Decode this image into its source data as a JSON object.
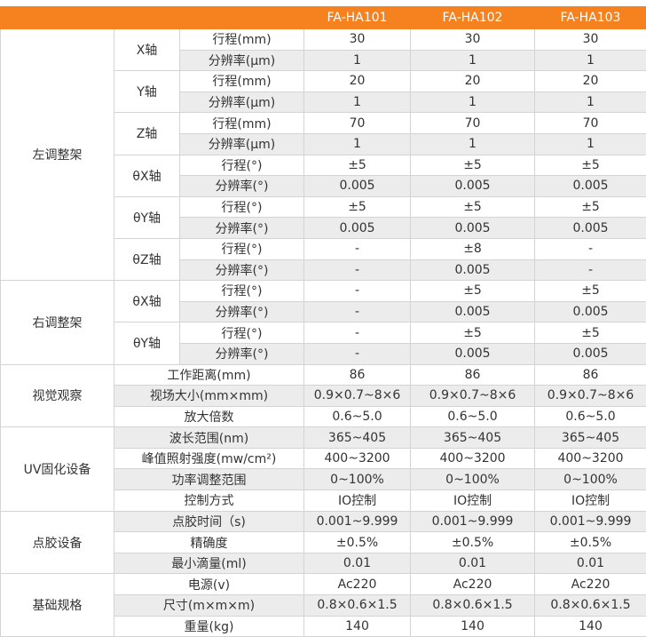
{
  "table": {
    "columns": [
      "FA-HA101",
      "FA-HA102",
      "FA-HA103"
    ],
    "groups": [
      {
        "label": "左调整架",
        "axes": [
          {
            "label": "X轴",
            "rows": [
              {
                "label": "行程(mm)",
                "values": [
                  "30",
                  "30",
                  "30"
                ]
              },
              {
                "label": "分辨率(μm)",
                "values": [
                  "1",
                  "1",
                  "1"
                ]
              }
            ]
          },
          {
            "label": "Y轴",
            "rows": [
              {
                "label": "行程(mm)",
                "values": [
                  "20",
                  "20",
                  "20"
                ]
              },
              {
                "label": "分辨率(μm)",
                "values": [
                  "1",
                  "1",
                  "1"
                ]
              }
            ]
          },
          {
            "label": "Z轴",
            "rows": [
              {
                "label": "行程(mm)",
                "values": [
                  "70",
                  "70",
                  "70"
                ]
              },
              {
                "label": "分辨率(μm)",
                "values": [
                  "1",
                  "1",
                  "1"
                ]
              }
            ]
          },
          {
            "label": "θX轴",
            "rows": [
              {
                "label": "行程(°)",
                "values": [
                  "±5",
                  "±5",
                  "±5"
                ]
              },
              {
                "label": "分辨率(°)",
                "values": [
                  "0.005",
                  "0.005",
                  "0.005"
                ]
              }
            ]
          },
          {
            "label": "θY轴",
            "rows": [
              {
                "label": "行程(°)",
                "values": [
                  "±5",
                  "±5",
                  "±5"
                ]
              },
              {
                "label": "分辨率(°)",
                "values": [
                  "0.005",
                  "0.005",
                  "0.005"
                ]
              }
            ]
          },
          {
            "label": "θZ轴",
            "rows": [
              {
                "label": "行程(°)",
                "values": [
                  "-",
                  "±8",
                  "-"
                ]
              },
              {
                "label": "分辨率(°)",
                "values": [
                  "-",
                  "0.005",
                  "-"
                ]
              }
            ]
          }
        ]
      },
      {
        "label": "右调整架",
        "axes": [
          {
            "label": "θX轴",
            "rows": [
              {
                "label": "行程(°)",
                "values": [
                  "-",
                  "±5",
                  "±5"
                ]
              },
              {
                "label": "分辨率(°)",
                "values": [
                  "-",
                  "0.005",
                  "0.005"
                ]
              }
            ]
          },
          {
            "label": "θY轴",
            "rows": [
              {
                "label": "行程(°)",
                "values": [
                  "-",
                  "±5",
                  "±5"
                ]
              },
              {
                "label": "分辨率(°)",
                "values": [
                  "-",
                  "0.005",
                  "0.005"
                ]
              }
            ]
          }
        ]
      },
      {
        "label": "视觉观察",
        "rows": [
          {
            "label": "工作距离(mm)",
            "values": [
              "86",
              "86",
              "86"
            ]
          },
          {
            "label": "视场大小(mm×mm)",
            "values": [
              "0.9×0.7~8×6",
              "0.9×0.7~8×6",
              "0.9×0.7~8×6"
            ]
          },
          {
            "label": "放大倍数",
            "values": [
              "0.6~5.0",
              "0.6~5.0",
              "0.6~5.0"
            ]
          }
        ]
      },
      {
        "label": "UV固化设备",
        "rows": [
          {
            "label": "波长范围(nm)",
            "values": [
              "365~405",
              "365~405",
              "365~405"
            ]
          },
          {
            "label": "峰值照射强度(mw/cm²)",
            "values": [
              "400~3200",
              "400~3200",
              "400~3200"
            ]
          },
          {
            "label": "功率调整范围",
            "values": [
              "0~100%",
              "0~100%",
              "0~100%"
            ]
          },
          {
            "label": "控制方式",
            "values": [
              "IO控制",
              "IO控制",
              "IO控制"
            ]
          }
        ]
      },
      {
        "label": "点胶设备",
        "rows": [
          {
            "label": "点胶时间（s)",
            "values": [
              "0.001~9.999",
              "0.001~9.999",
              "0.001~9.999"
            ]
          },
          {
            "label": "精确度",
            "values": [
              "±0.5%",
              "±0.5%",
              "±0.5%"
            ]
          },
          {
            "label": "最小滴量(ml)",
            "values": [
              "0.01",
              "0.01",
              "0.01"
            ]
          }
        ]
      },
      {
        "label": "基础规格",
        "rows": [
          {
            "label": "电源(v)",
            "values": [
              "Ac220",
              "Ac220",
              "Ac220"
            ]
          },
          {
            "label": "尺寸(m×m×m)",
            "values": [
              "0.8×0.6×1.5",
              "0.8×0.6×1.5",
              "0.8×0.6×1.5"
            ]
          },
          {
            "label": "重量(kg)",
            "values": [
              "140",
              "140",
              "140"
            ]
          }
        ]
      }
    ]
  }
}
